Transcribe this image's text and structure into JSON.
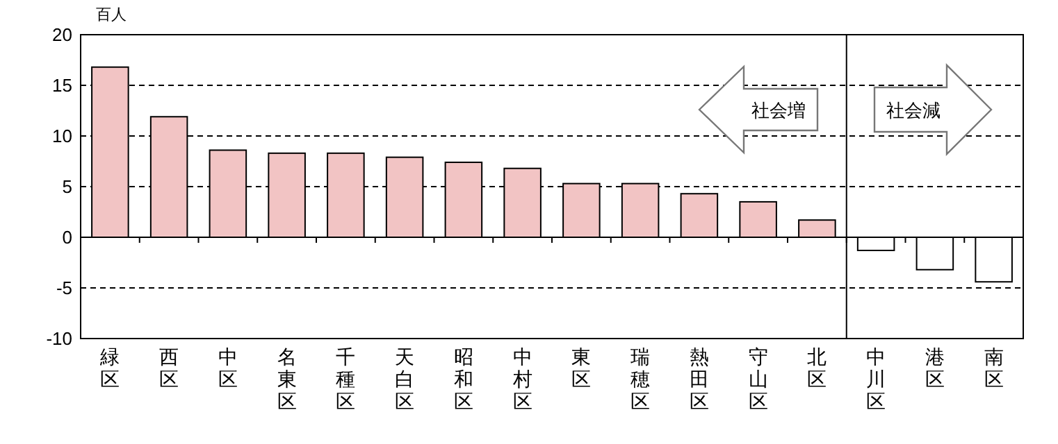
{
  "chart_data": {
    "type": "bar",
    "ylabel": "百人",
    "categories": [
      "緑区",
      "西区",
      "中区",
      "名東区",
      "千種区",
      "天白区",
      "昭和区",
      "中村区",
      "東区",
      "瑞穂区",
      "熱田区",
      "守山区",
      "北区",
      "中川区",
      "港区",
      "南区"
    ],
    "values": [
      16.8,
      11.9,
      8.6,
      8.3,
      8.3,
      7.9,
      7.4,
      6.8,
      5.3,
      5.3,
      4.3,
      3.5,
      1.7,
      -1.3,
      -3.2,
      -4.4
    ],
    "colors": [
      "#f2c4c4",
      "#f2c4c4",
      "#f2c4c4",
      "#f2c4c4",
      "#f2c4c4",
      "#f2c4c4",
      "#f2c4c4",
      "#f2c4c4",
      "#f2c4c4",
      "#f2c4c4",
      "#f2c4c4",
      "#f2c4c4",
      "#f2c4c4",
      "#ffffff",
      "#ffffff",
      "#ffffff"
    ],
    "ylim": [
      -10,
      20
    ],
    "yticks": [
      -10,
      -5,
      0,
      5,
      10,
      15,
      20
    ],
    "grid": "y",
    "line_style": "dashed",
    "annotations": [
      "社会増",
      "社会減"
    ]
  }
}
